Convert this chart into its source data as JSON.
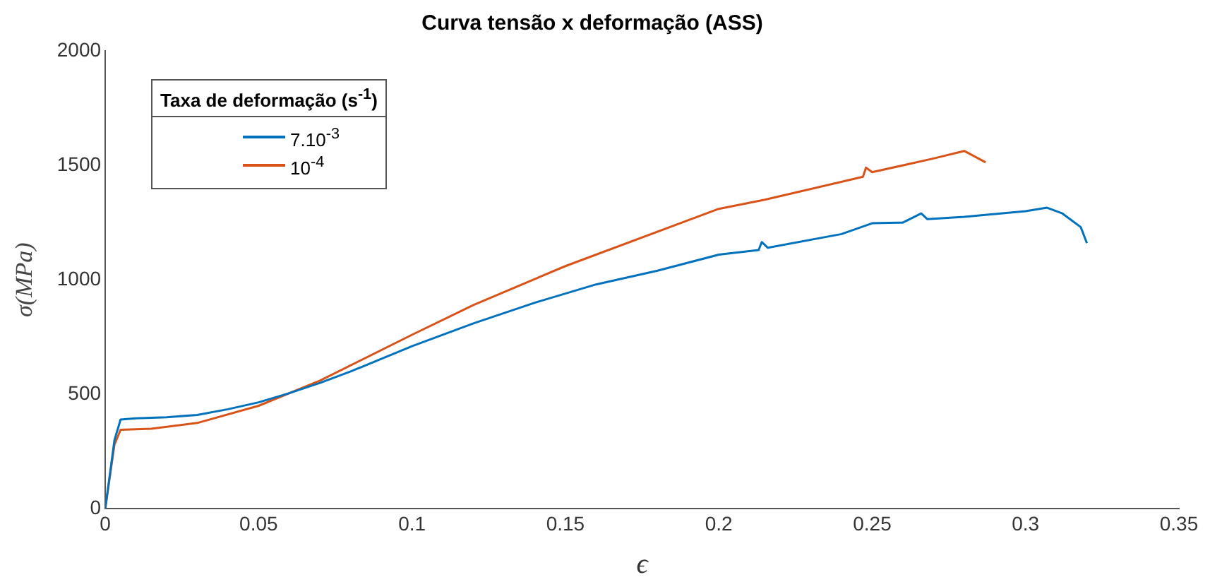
{
  "chart_data": {
    "type": "line",
    "title": "Curva tensão x deformação (ASS)",
    "xlabel": "ϵ",
    "ylabel": "σ(MPa)",
    "legend_title": "Taxa de deformação (s$^{-1}$)",
    "legend": "top left",
    "grid": false,
    "marker": "none",
    "line_style": "solid",
    "xlim": [
      0,
      0.35
    ],
    "xticks": [
      0,
      0.05,
      0.1,
      0.15,
      0.2,
      0.25,
      0.3,
      0.35
    ],
    "ylim": [
      0,
      2000
    ],
    "yticks": [
      0,
      500,
      1000,
      1500,
      2000
    ],
    "series": [
      {
        "name": "7.10$^{-3}$",
        "color": "#0072bd",
        "x": [
          0,
          0.003,
          0.005,
          0.01,
          0.02,
          0.03,
          0.04,
          0.05,
          0.06,
          0.07,
          0.08,
          0.1,
          0.12,
          0.14,
          0.16,
          0.18,
          0.2,
          0.213,
          0.214,
          0.216,
          0.24,
          0.25,
          0.26,
          0.266,
          0.268,
          0.28,
          0.3,
          0.307,
          0.312,
          0.318,
          0.32
        ],
        "values": [
          0,
          300,
          390,
          395,
          400,
          410,
          435,
          465,
          505,
          550,
          600,
          710,
          810,
          900,
          980,
          1040,
          1110,
          1130,
          1165,
          1140,
          1200,
          1247,
          1250,
          1290,
          1265,
          1275,
          1300,
          1315,
          1290,
          1230,
          1160
        ]
      },
      {
        "name": "10$^{-4}$",
        "color": "#d95319",
        "x": [
          0,
          0.003,
          0.005,
          0.015,
          0.03,
          0.05,
          0.07,
          0.1,
          0.12,
          0.15,
          0.2,
          0.215,
          0.247,
          0.248,
          0.25,
          0.27,
          0.28,
          0.287
        ],
        "values": [
          0,
          280,
          345,
          350,
          375,
          450,
          560,
          760,
          890,
          1060,
          1310,
          1350,
          1450,
          1490,
          1470,
          1530,
          1563,
          1513
        ]
      }
    ]
  }
}
